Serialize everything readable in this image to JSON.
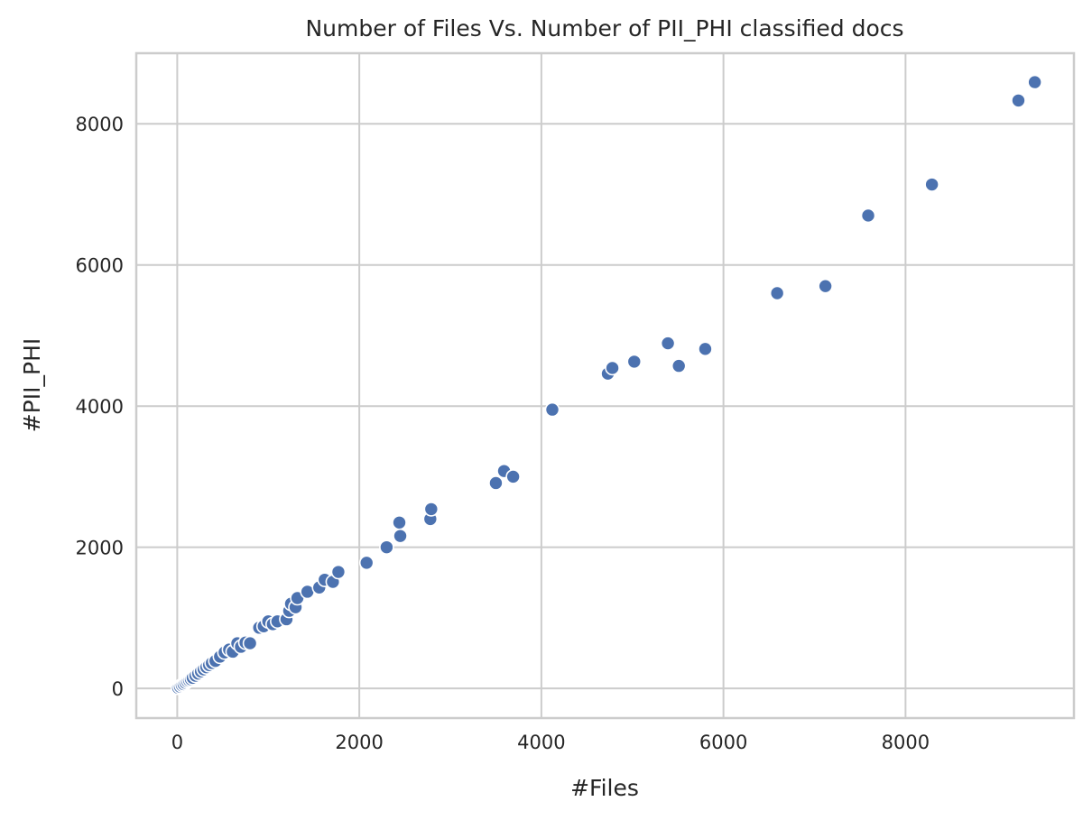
{
  "chart_data": {
    "type": "scatter",
    "title": "Number of Files Vs. Number of PII_PHI classified docs",
    "xlabel": "#Files",
    "ylabel": "#PII_PHI",
    "xlim": [
      -450,
      9850
    ],
    "ylim": [
      -420,
      9000
    ],
    "xticks": [
      0,
      2000,
      4000,
      6000,
      8000
    ],
    "yticks": [
      0,
      2000,
      4000,
      6000,
      8000
    ],
    "tick_labels_x": [
      "0",
      "2000",
      "4000",
      "6000",
      "8000"
    ],
    "tick_labels_y": [
      "0",
      "2000",
      "4000",
      "6000",
      "8000"
    ],
    "grid": true,
    "legend": "none",
    "point_color": "#4c72b0",
    "x": [
      10,
      30,
      50,
      70,
      90,
      110,
      130,
      150,
      170,
      200,
      230,
      260,
      290,
      320,
      350,
      380,
      420,
      470,
      520,
      570,
      610,
      660,
      700,
      750,
      800,
      900,
      950,
      1000,
      1050,
      1100,
      1200,
      1230,
      1250,
      1300,
      1320,
      1430,
      1560,
      1620,
      1710,
      1770,
      2080,
      2300,
      2440,
      2450,
      2780,
      2790,
      3500,
      3590,
      3690,
      4120,
      4730,
      4780,
      5020,
      5390,
      5510,
      5800,
      6590,
      7120,
      7590,
      8290,
      9240,
      9420
    ],
    "y": [
      10,
      25,
      45,
      60,
      80,
      100,
      115,
      130,
      150,
      180,
      210,
      240,
      270,
      300,
      330,
      360,
      390,
      450,
      510,
      550,
      520,
      640,
      590,
      650,
      640,
      860,
      880,
      950,
      910,
      950,
      980,
      1100,
      1200,
      1150,
      1280,
      1370,
      1430,
      1540,
      1510,
      1650,
      1780,
      2000,
      2350,
      2160,
      2400,
      2540,
      2910,
      3080,
      3000,
      3950,
      4460,
      4540,
      4630,
      4890,
      4570,
      4810,
      5600,
      5700,
      6700,
      7140,
      8330,
      8590
    ]
  }
}
